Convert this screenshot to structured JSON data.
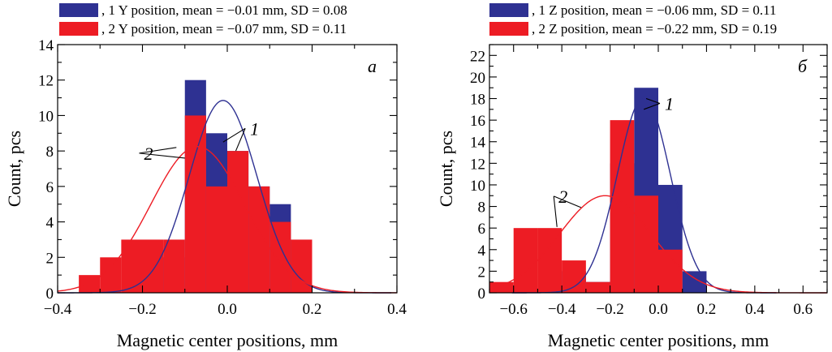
{
  "chart_data": [
    {
      "type": "bar",
      "panel_label": "а",
      "xlabel": "Magnetic center positions, mm",
      "ylabel": "Count, pcs",
      "xlim": [
        -0.4,
        0.4
      ],
      "ylim": [
        0,
        14
      ],
      "xticks": [
        -0.4,
        -0.2,
        0.0,
        0.2,
        0.4
      ],
      "xtick_labels": [
        "−0.4",
        "−0.2",
        "0.0",
        "0.2",
        "0.4"
      ],
      "yticks": [
        0,
        2,
        4,
        6,
        8,
        10,
        12,
        14
      ],
      "ytick_labels": [
        "0",
        "2",
        "4",
        "6",
        "8",
        "10",
        "12",
        "14"
      ],
      "bin_width": 0.05,
      "legend": [
        {
          "swatch_color": "#2e3192",
          "text": ", 1  Y position, mean = −0.01 mm, SD = 0.08"
        },
        {
          "swatch_color": "#ed1c24",
          "text": ", 2  Y position, mean = −0.07 mm, SD = 0.11"
        }
      ],
      "series": [
        {
          "name": "1",
          "color": "#2e3192",
          "bins": [
            {
              "x": -0.325,
              "value": 0
            },
            {
              "x": -0.275,
              "value": 0
            },
            {
              "x": -0.225,
              "value": 0
            },
            {
              "x": -0.175,
              "value": 2
            },
            {
              "x": -0.125,
              "value": 2
            },
            {
              "x": -0.075,
              "value": 12
            },
            {
              "x": -0.025,
              "value": 9
            },
            {
              "x": 0.025,
              "value": 8
            },
            {
              "x": 0.075,
              "value": 6
            },
            {
              "x": 0.125,
              "value": 5
            },
            {
              "x": 0.175,
              "value": 1
            }
          ],
          "fit": {
            "mean": -0.01,
            "sd": 0.08,
            "peak": 10.85
          }
        },
        {
          "name": "2",
          "color": "#ed1c24",
          "bins": [
            {
              "x": -0.325,
              "value": 1
            },
            {
              "x": -0.275,
              "value": 2
            },
            {
              "x": -0.225,
              "value": 3
            },
            {
              "x": -0.175,
              "value": 3
            },
            {
              "x": -0.125,
              "value": 3
            },
            {
              "x": -0.075,
              "value": 10
            },
            {
              "x": -0.025,
              "value": 6
            },
            {
              "x": 0.025,
              "value": 8
            },
            {
              "x": 0.075,
              "value": 6
            },
            {
              "x": 0.125,
              "value": 4
            },
            {
              "x": 0.175,
              "value": 3
            }
          ],
          "fit": {
            "mean": -0.07,
            "sd": 0.11,
            "peak": 8.25
          }
        }
      ],
      "annotations": [
        {
          "text": "1",
          "label_at": [
            0.05,
            9.0
          ],
          "targets": [
            [
              -0.01,
              8.5
            ],
            [
              0.02,
              8.0
            ]
          ]
        },
        {
          "text": "2",
          "label_at": [
            -0.2,
            7.6
          ],
          "targets": [
            [
              -0.12,
              8.2
            ],
            [
              -0.1,
              7.6
            ]
          ]
        }
      ]
    },
    {
      "type": "bar",
      "panel_label": "б",
      "xlabel": "Magnetic center positions, mm",
      "ylabel": "Count, pcs",
      "xlim": [
        -0.7,
        0.7
      ],
      "ylim": [
        0,
        23
      ],
      "xticks": [
        -0.6,
        -0.4,
        -0.2,
        0.0,
        0.2,
        0.4,
        0.6
      ],
      "xtick_labels": [
        "−0.6",
        "−0.4",
        "−0.2",
        "0.0",
        "0.2",
        "0.4",
        "0.6"
      ],
      "yticks": [
        0,
        2,
        4,
        6,
        8,
        10,
        12,
        14,
        16,
        18,
        20,
        22
      ],
      "ytick_labels": [
        "0",
        "2",
        "4",
        "6",
        "8",
        "10",
        "12",
        "14",
        "16",
        "18",
        "20",
        "22"
      ],
      "bin_width": 0.1,
      "legend": [
        {
          "swatch_color": "#2e3192",
          "text": ", 1  Z position, mean = −0.06 mm, SD = 0.11"
        },
        {
          "swatch_color": "#ed1c24",
          "text": ", 2  Z position, mean = −0.22 mm, SD = 0.19"
        }
      ],
      "series": [
        {
          "name": "1",
          "color": "#2e3192",
          "bins": [
            {
              "x": -0.65,
              "value": 0
            },
            {
              "x": -0.55,
              "value": 0
            },
            {
              "x": -0.45,
              "value": 0
            },
            {
              "x": -0.35,
              "value": 2
            },
            {
              "x": -0.25,
              "value": 1
            },
            {
              "x": -0.15,
              "value": 12
            },
            {
              "x": -0.05,
              "value": 19
            },
            {
              "x": 0.05,
              "value": 10
            },
            {
              "x": 0.15,
              "value": 2
            }
          ],
          "fit": {
            "mean": -0.06,
            "sd": 0.11,
            "peak": 18.1
          }
        },
        {
          "name": "2",
          "color": "#ed1c24",
          "bins": [
            {
              "x": -0.65,
              "value": 1
            },
            {
              "x": -0.55,
              "value": 6
            },
            {
              "x": -0.45,
              "value": 6
            },
            {
              "x": -0.35,
              "value": 3
            },
            {
              "x": -0.25,
              "value": 1
            },
            {
              "x": -0.15,
              "value": 16
            },
            {
              "x": -0.05,
              "value": 9
            },
            {
              "x": 0.05,
              "value": 4
            },
            {
              "x": 0.15,
              "value": 0
            }
          ],
          "fit": {
            "mean": -0.22,
            "sd": 0.19,
            "peak": 9.0
          }
        }
      ],
      "annotations": [
        {
          "text": "1",
          "label_at": [
            0.02,
            17.1
          ],
          "targets": [
            [
              -0.05,
              18.0
            ],
            [
              -0.06,
              17.0
            ]
          ]
        },
        {
          "text": "2",
          "label_at": [
            -0.42,
            8.5
          ],
          "targets": [
            [
              -0.42,
              6.1
            ],
            [
              -0.32,
              7.9
            ]
          ]
        }
      ]
    }
  ]
}
